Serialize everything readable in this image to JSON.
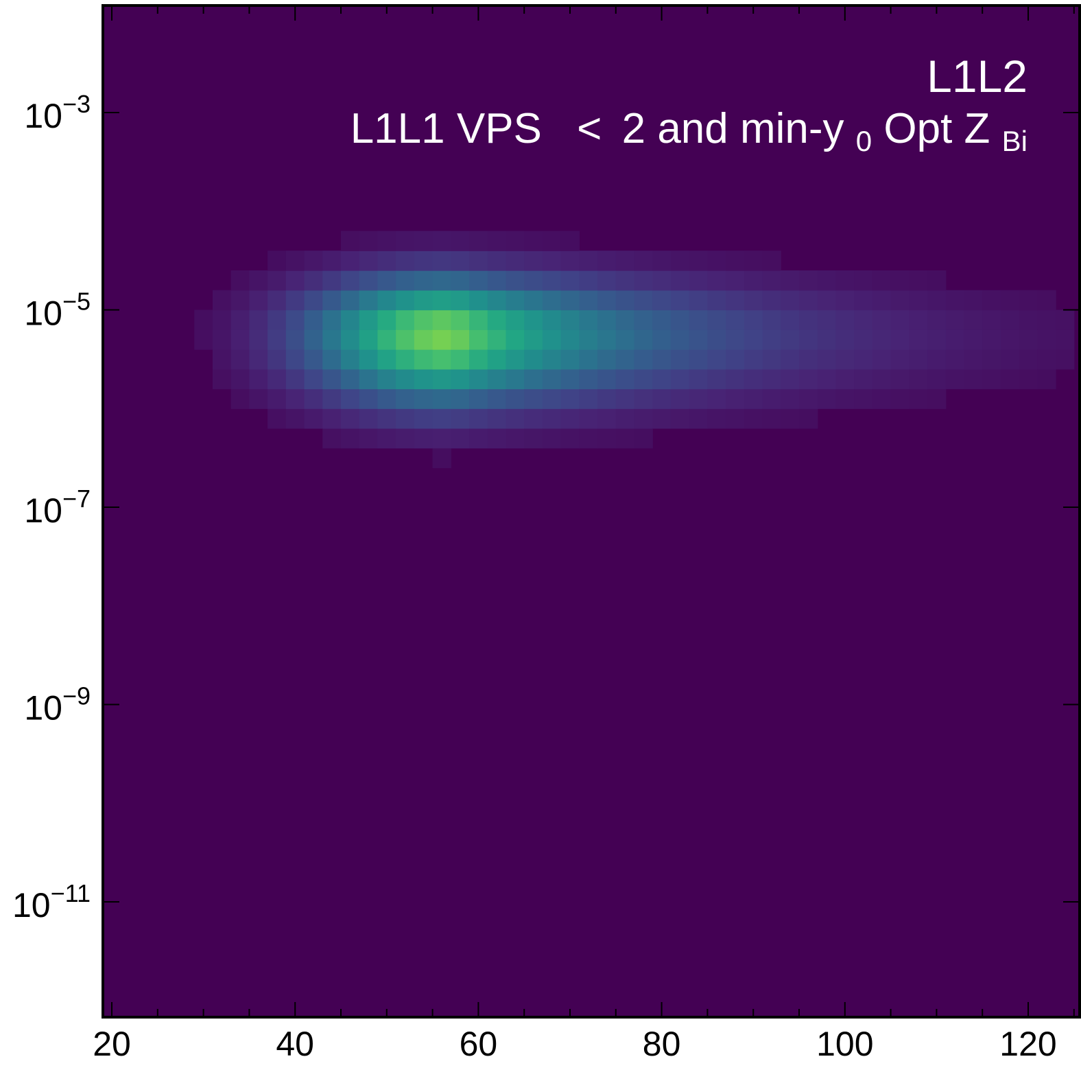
{
  "chart_data": {
    "type": "heatmap",
    "title": "",
    "xlabel": "",
    "ylabel": "",
    "xlim": [
      19,
      125
    ],
    "y_scale": "log",
    "ylim_log10": [
      -12.85,
      -1.9
    ],
    "grid": false,
    "colormap": "viridis",
    "background_color": "#440154",
    "x_ticks": [
      {
        "value": 20,
        "label": "20"
      },
      {
        "value": 40,
        "label": "40"
      },
      {
        "value": 60,
        "label": "60"
      },
      {
        "value": 80,
        "label": "80"
      },
      {
        "value": 100,
        "label": "100"
      },
      {
        "value": 120,
        "label": "120"
      }
    ],
    "y_ticks": [
      {
        "log10": -3,
        "base": "10",
        "exp": "−3"
      },
      {
        "log10": -5,
        "base": "10",
        "exp": "−5"
      },
      {
        "log10": -7,
        "base": "10",
        "exp": "−7"
      },
      {
        "log10": -9,
        "base": "10",
        "exp": "−9"
      },
      {
        "log10": -11,
        "base": "10",
        "exp": "−11"
      }
    ],
    "annotations": {
      "line1": "L1L2",
      "line2_pre": "L1L1 VPS",
      "line2_lt": "<",
      "line2_mid": "2 and min-y",
      "line2_sub1": "0",
      "line2_post": " Opt Z",
      "line2_sub2": "Bi"
    },
    "heatmap": {
      "description": "intensity 0..1 on viridis; peak near x=57, y=10^-5.25",
      "peak": {
        "x": 57,
        "log10_y": -5.25,
        "intensity": 0.8
      },
      "x_bins": {
        "start": 19,
        "width": 2,
        "count": 53
      },
      "log10_y_bins": {
        "start": -7.0,
        "width": 0.2,
        "count": 18
      },
      "left_edge_x": 29,
      "intensity_profile": {
        "x_scale_left": 11,
        "x_scale_right": 24,
        "log10_y_sigma_low": 0.5,
        "log10_y_sigma_high": 0.42,
        "threshold": 0.035
      }
    }
  }
}
